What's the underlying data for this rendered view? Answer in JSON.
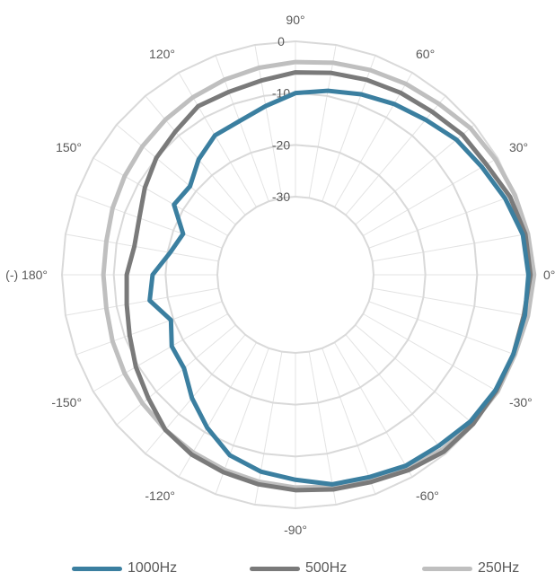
{
  "chart_data": {
    "type": "polar",
    "title": "",
    "radial_axis": {
      "min": -30,
      "max": 0,
      "ticks": [
        0,
        -10,
        -20,
        -30
      ]
    },
    "angular_ticks": [
      {
        "angle": 0,
        "label": "0°"
      },
      {
        "angle": 30,
        "label": "30°"
      },
      {
        "angle": 60,
        "label": "60°"
      },
      {
        "angle": 90,
        "label": "90°"
      },
      {
        "angle": 120,
        "label": "120°"
      },
      {
        "angle": 150,
        "label": "150°"
      },
      {
        "angle": 180,
        "label": "(-) 180°"
      },
      {
        "angle": -150,
        "label": "-150°"
      },
      {
        "angle": -120,
        "label": "-120°"
      },
      {
        "angle": -90,
        "label": "-90°"
      },
      {
        "angle": -60,
        "label": "-60°"
      },
      {
        "angle": -30,
        "label": "-30°"
      }
    ],
    "angles": [
      0,
      10,
      20,
      30,
      40,
      50,
      60,
      70,
      80,
      90,
      100,
      110,
      120,
      130,
      140,
      150,
      160,
      170,
      180,
      190,
      200,
      210,
      220,
      230,
      240,
      250,
      260,
      270,
      280,
      290,
      300,
      310,
      320,
      330,
      340,
      350
    ],
    "series": [
      {
        "name": "1000Hz",
        "color": "#3b7fa0",
        "values": [
          -0.1,
          -0.5,
          -2,
          -3.5,
          -4.5,
          -6,
          -7,
          -8,
          -9,
          -10,
          -12,
          -13.5,
          -14,
          -16,
          -18.5,
          -18,
          -22,
          -20.5,
          -17.5,
          -16.5,
          -19.5,
          -17.5,
          -17,
          -14,
          -11,
          -8,
          -6.5,
          -5.5,
          -4,
          -3.5,
          -2.5,
          -2,
          -1,
          -0.5,
          -0.3,
          -0.1
        ]
      },
      {
        "name": "500Hz",
        "color": "#7a7a7a",
        "values": [
          0.3,
          0,
          -1,
          -2.5,
          -3,
          -4,
          -4.5,
          -5,
          -5.5,
          -6,
          -7,
          -7.5,
          -7.5,
          -9,
          -10,
          -11.5,
          -13,
          -13.5,
          -12.5,
          -12,
          -11,
          -9.5,
          -8,
          -6,
          -5,
          -4.5,
          -4,
          -3.5,
          -3,
          -2.5,
          -1.5,
          -0.5,
          -0.3,
          -0.3,
          -0.3,
          -0.3
        ]
      },
      {
        "name": "250Hz",
        "color": "#bfbfbf",
        "values": [
          1,
          0.5,
          0,
          -0.5,
          -1,
          -2,
          -2.5,
          -3,
          -3.5,
          -4,
          -4.5,
          -5,
          -5.5,
          -6,
          -6.5,
          -7,
          -7.5,
          -8,
          -8,
          -8,
          -7.5,
          -7,
          -6.5,
          -6,
          -5.5,
          -5,
          -4.5,
          -4,
          -3.5,
          -3,
          -2,
          -1,
          -0.5,
          0,
          0,
          0.5
        ]
      }
    ],
    "legend_position": "bottom",
    "grid": true
  }
}
